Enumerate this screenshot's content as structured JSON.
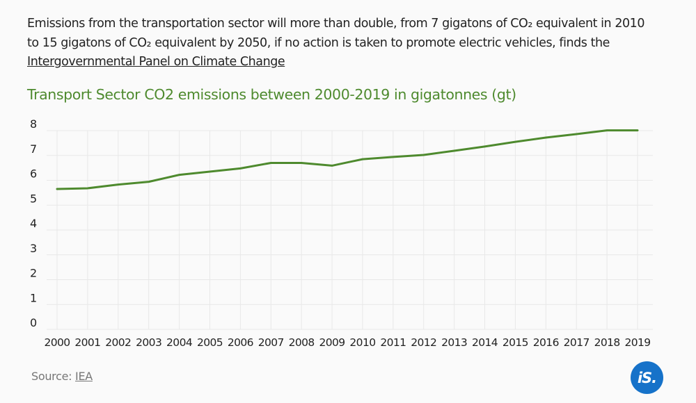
{
  "intro": {
    "text_before": "Emissions from the transportation sector will more than double, from 7 gigatons of CO₂ equivalent in 2010 to 15 gigatons of CO₂ equivalent by 2050, if no action is taken to promote electric vehicles, finds the ",
    "link_text": "Intergovernmental Panel on Climate Change"
  },
  "source": {
    "label": "Source: ",
    "link_text": "IEA"
  },
  "logo": {
    "text": "iS.",
    "color": "#1672c9"
  },
  "colors": {
    "line": "#4e8a2e",
    "title": "#4e8a2e",
    "grid": "#e8e8e8"
  },
  "chart_data": {
    "type": "line",
    "title": "Transport Sector CO2 emissions between 2000-2019 in gigatonnes (gt)",
    "xlabel": "",
    "ylabel": "",
    "x": [
      "2000",
      "2001",
      "2002",
      "2003",
      "2004",
      "2005",
      "2006",
      "2007",
      "2008",
      "2009",
      "2010",
      "2011",
      "2012",
      "2013",
      "2014",
      "2015",
      "2016",
      "2017",
      "2018",
      "2019"
    ],
    "series": [
      {
        "name": "Transport Sector CO2 emissions (gt)",
        "values": [
          5.65,
          5.68,
          5.83,
          5.94,
          6.22,
          6.35,
          6.48,
          6.7,
          6.7,
          6.59,
          6.85,
          6.94,
          7.02,
          7.19,
          7.36,
          7.55,
          7.72,
          7.86,
          8.01,
          8.01
        ]
      }
    ],
    "ylim": [
      0,
      8
    ],
    "yticks": [
      "0",
      "1",
      "2",
      "3",
      "4",
      "5",
      "6",
      "7",
      "8"
    ],
    "grid": true,
    "legend": "none"
  }
}
